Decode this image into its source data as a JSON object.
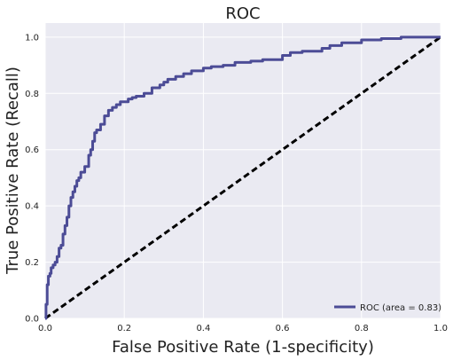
{
  "chart_data": {
    "type": "line",
    "title": "ROC",
    "xlabel": "False Positive Rate (1-specificity)",
    "ylabel": "True Positive Rate (Recall)",
    "xlim": [
      0.0,
      1.0
    ],
    "ylim": [
      0.0,
      1.05
    ],
    "xticks": [
      "0.0",
      "0.2",
      "0.4",
      "0.6",
      "0.8",
      "1.0"
    ],
    "yticks": [
      "0.0",
      "0.2",
      "0.4",
      "0.6",
      "0.8",
      "1.0"
    ],
    "grid": true,
    "legend_position": "lower-right",
    "colors": {
      "roc": "#4c4c96",
      "diagonal": "#000000",
      "background": "#eaeaf2",
      "grid": "#ffffff"
    },
    "series": [
      {
        "name": "ROC (area = 0.83)",
        "style": "solid",
        "x": [
          0.0,
          0.002,
          0.002,
          0.005,
          0.005,
          0.008,
          0.008,
          0.012,
          0.015,
          0.02,
          0.025,
          0.03,
          0.035,
          0.04,
          0.045,
          0.05,
          0.055,
          0.06,
          0.065,
          0.07,
          0.075,
          0.08,
          0.085,
          0.09,
          0.1,
          0.11,
          0.115,
          0.12,
          0.125,
          0.13,
          0.14,
          0.15,
          0.16,
          0.17,
          0.18,
          0.19,
          0.2,
          0.21,
          0.22,
          0.23,
          0.24,
          0.25,
          0.27,
          0.29,
          0.3,
          0.31,
          0.33,
          0.35,
          0.37,
          0.4,
          0.42,
          0.45,
          0.48,
          0.5,
          0.52,
          0.55,
          0.6,
          0.62,
          0.65,
          0.7,
          0.72,
          0.75,
          0.8,
          0.85,
          0.9,
          0.95,
          1.0
        ],
        "y": [
          0.0,
          0.0,
          0.05,
          0.06,
          0.12,
          0.14,
          0.15,
          0.16,
          0.18,
          0.19,
          0.2,
          0.22,
          0.25,
          0.26,
          0.3,
          0.33,
          0.36,
          0.4,
          0.43,
          0.45,
          0.47,
          0.49,
          0.5,
          0.52,
          0.54,
          0.58,
          0.6,
          0.63,
          0.66,
          0.67,
          0.69,
          0.72,
          0.74,
          0.75,
          0.76,
          0.77,
          0.77,
          0.78,
          0.785,
          0.79,
          0.79,
          0.8,
          0.82,
          0.83,
          0.84,
          0.85,
          0.86,
          0.87,
          0.88,
          0.89,
          0.895,
          0.9,
          0.91,
          0.91,
          0.915,
          0.92,
          0.935,
          0.945,
          0.95,
          0.96,
          0.97,
          0.98,
          0.99,
          0.995,
          1.0,
          1.0,
          1.0
        ]
      },
      {
        "style": "dashed",
        "x": [
          0.0,
          1.0
        ],
        "y": [
          0.0,
          1.0
        ]
      }
    ]
  }
}
